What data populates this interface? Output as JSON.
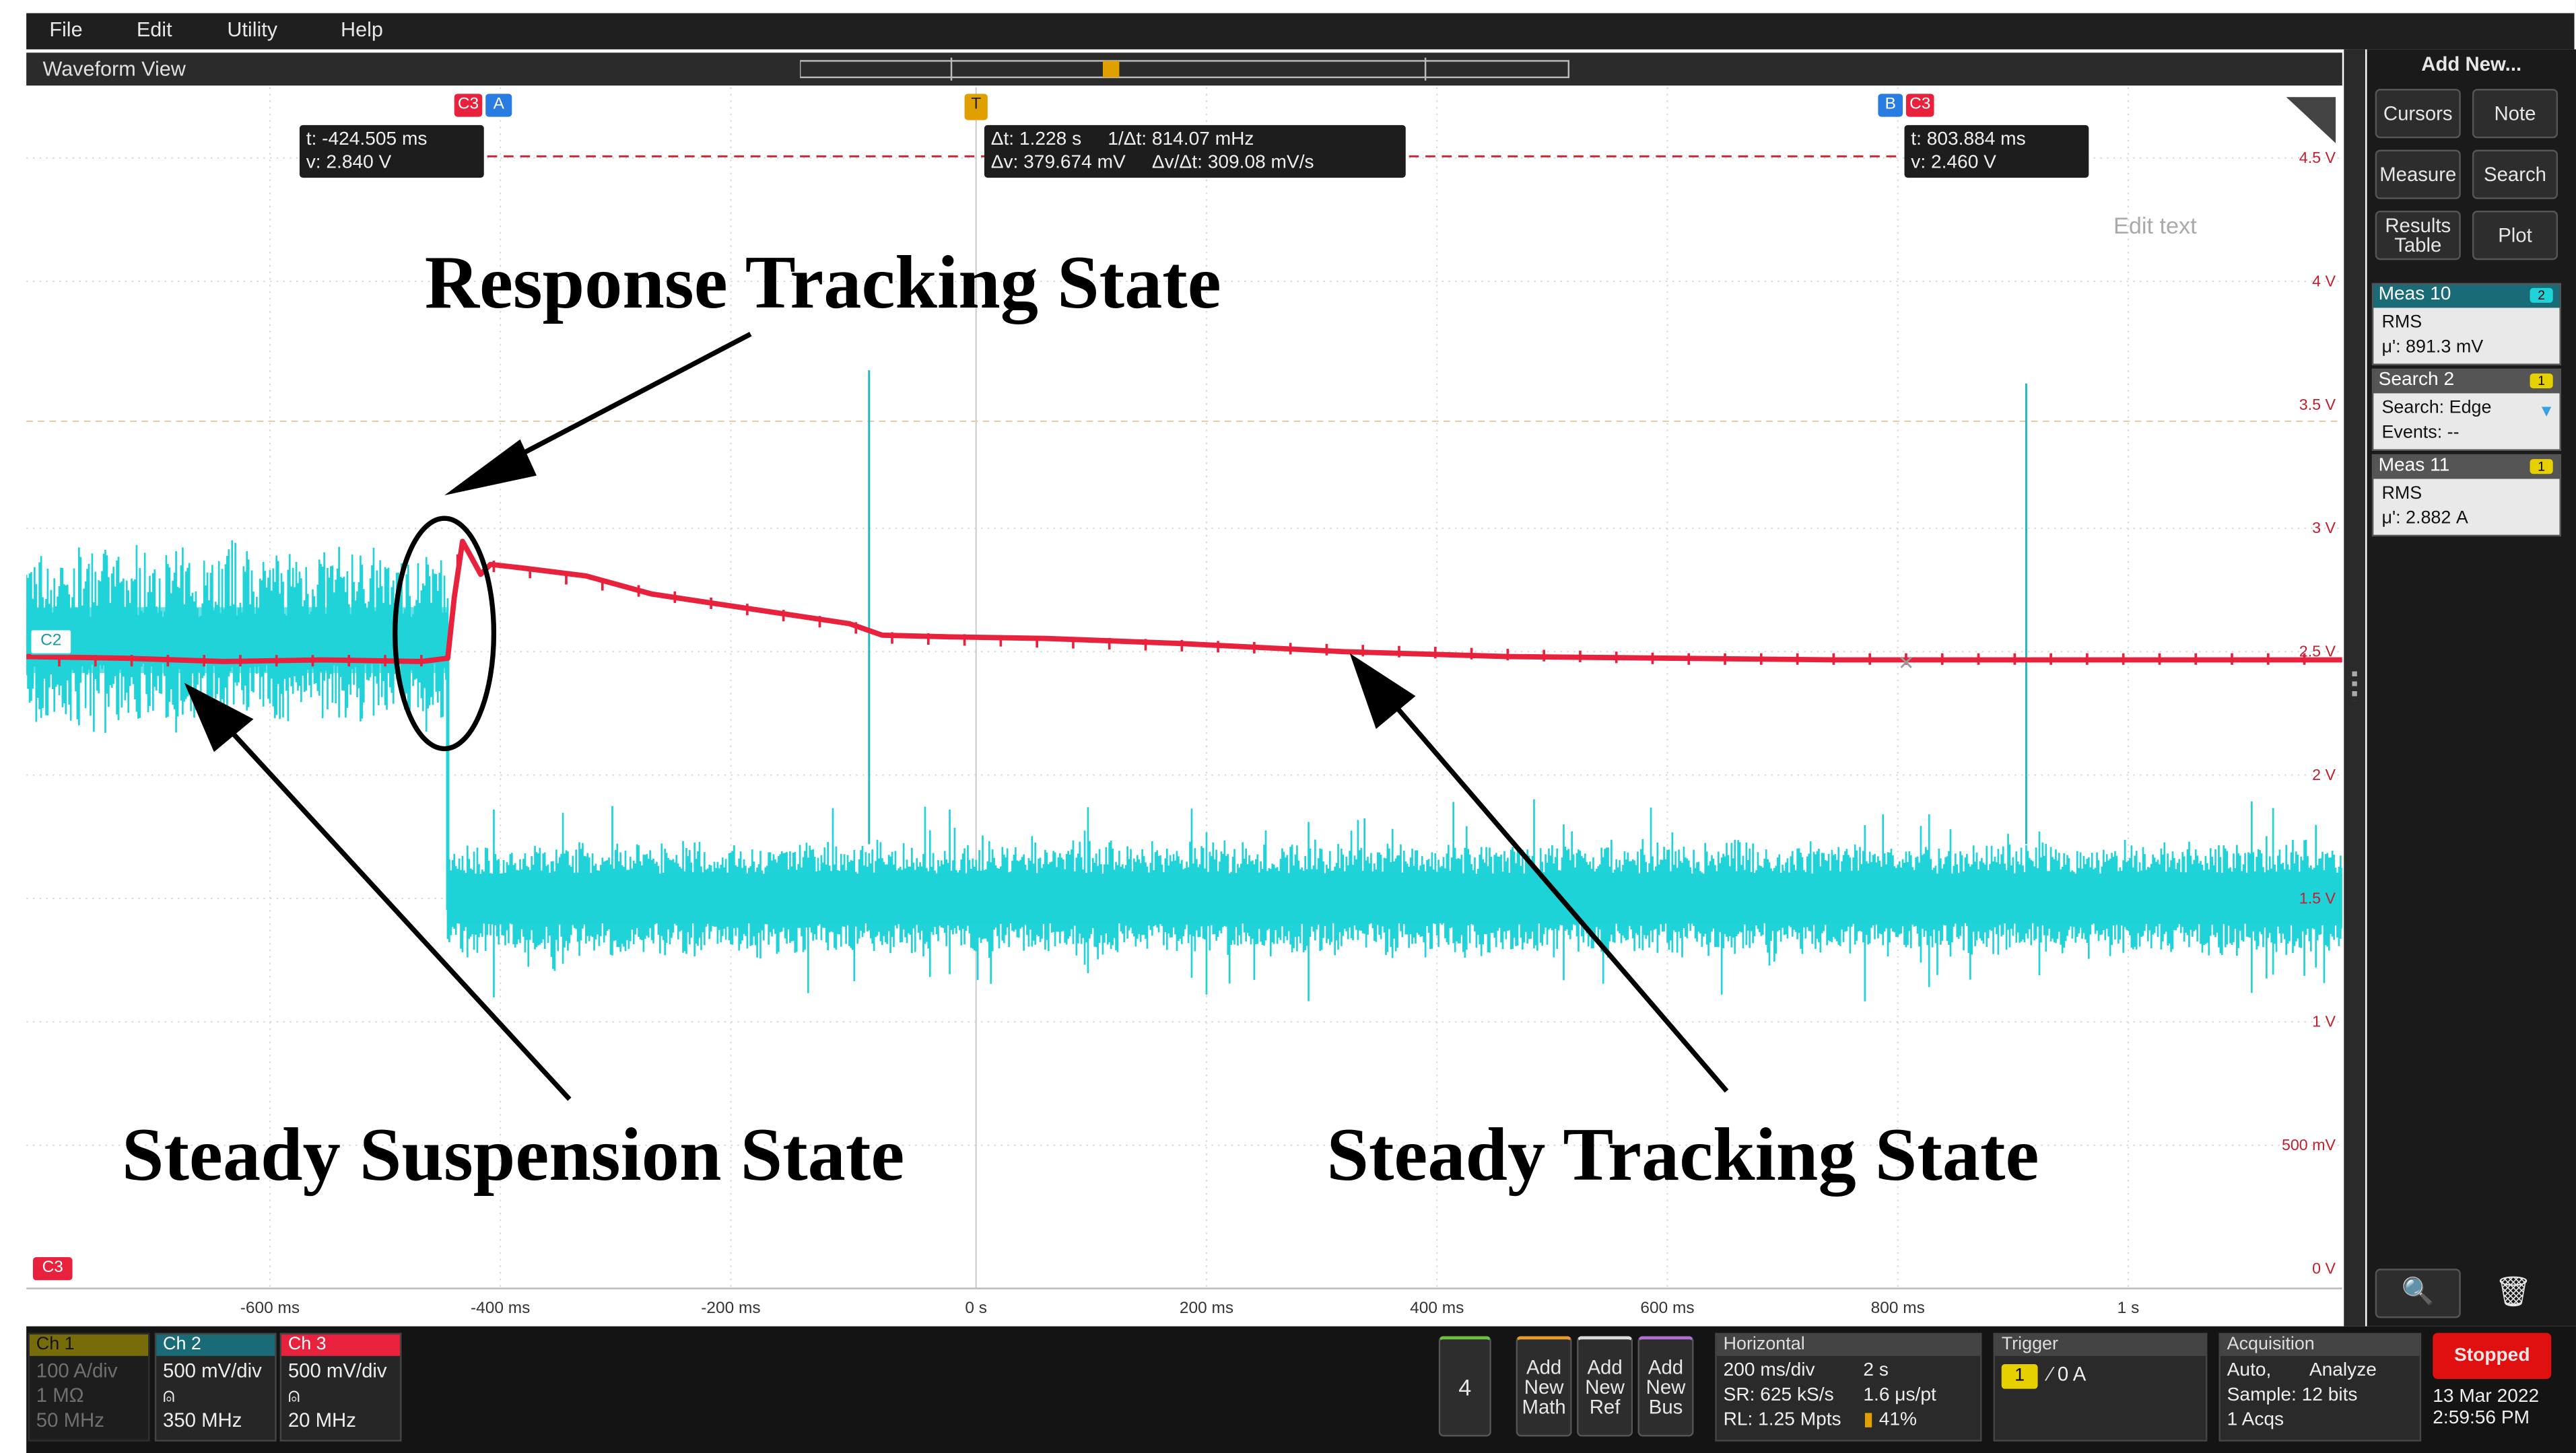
{
  "menu": [
    "File",
    "Edit",
    "Utility",
    "Help"
  ],
  "waveform_view": {
    "title": "Waveform View",
    "edit_text": "Edit text"
  },
  "cursors": {
    "left_tag": [
      "C3",
      "A"
    ],
    "right_tag": [
      "B",
      "C3"
    ],
    "left_readout": [
      "t: -424.505 ms",
      "v: 2.840 V"
    ],
    "right_readout": [
      "t: 803.884 ms",
      "v: 2.460 V"
    ],
    "delta_readout": [
      "Δt: 1.228 s",
      "1/Δt: 814.07 mHz",
      "Δv: 379.674 mV",
      "Δv/Δt: 309.08 mV/s"
    ],
    "trigger_marker": "T"
  },
  "y_axis_labels": [
    "4.5 V",
    "4 V",
    "3.5 V",
    "3 V",
    "2.5 V",
    "2 V",
    "1.5 V",
    "1 V",
    "500 mV",
    "0 V"
  ],
  "x_axis_labels": [
    "-600 ms",
    "-400 ms",
    "-200 ms",
    "0 s",
    "200 ms",
    "400 ms",
    "600 ms",
    "800 ms",
    "1 s"
  ],
  "channel_markers": {
    "c2": "C2",
    "c3": "C3"
  },
  "annotations": {
    "response": "Response Tracking State",
    "suspension": "Steady Suspension State",
    "tracking": "Steady Tracking State"
  },
  "right_panel": {
    "add_new": "Add New...",
    "buttons": [
      "Cursors",
      "Note",
      "Measure",
      "Search",
      "Results Table",
      "Plot"
    ],
    "meas10": {
      "title": "Meas 10",
      "badge": "2",
      "line1": "RMS",
      "line2": "μ': 891.3 mV"
    },
    "search2": {
      "title": "Search 2",
      "badge": "1",
      "line1": "Search: Edge",
      "line2": "Events: --"
    },
    "meas11": {
      "title": "Meas 11",
      "badge": "1",
      "line1": "RMS",
      "line2": "μ': 2.882 A"
    }
  },
  "channels": [
    {
      "name": "Ch 1",
      "lines": [
        "100 A/div",
        "1 MΩ",
        "50 MHz"
      ],
      "color": "#c8b400"
    },
    {
      "name": "Ch 2",
      "lines": [
        "500 mV/div",
        "⍝",
        "350 MHz"
      ],
      "color": "#1fd3d8"
    },
    {
      "name": "Ch 3",
      "lines": [
        "500 mV/div",
        "⍝",
        "20 MHz"
      ],
      "color": "#e8213d"
    }
  ],
  "bottom": {
    "num": "4",
    "add_math": "Add New Math",
    "add_ref": "Add New Ref",
    "add_bus": "Add New Bus",
    "horizontal": {
      "title": "Horizontal",
      "r1a": "200 ms/div",
      "r1b": "2 s",
      "r2a": "SR: 625 kS/s",
      "r2b": "1.6 μs/pt",
      "r3a": "RL: 1.25 Mpts",
      "r3b": "41%"
    },
    "trigger": {
      "title": "Trigger",
      "ch": "1",
      "level": "0 A"
    },
    "acquisition": {
      "title": "Acquisition",
      "r1a": "Auto,",
      "r1b": "Analyze",
      "r2": "Sample: 12 bits",
      "r3": "1 Acqs"
    },
    "stopped": "Stopped",
    "date": "13 Mar 2022",
    "time": "2:59:56 PM"
  },
  "colors": {
    "cyan": "#1fd3d8",
    "red": "#e8213d",
    "background": "#ffffff"
  }
}
